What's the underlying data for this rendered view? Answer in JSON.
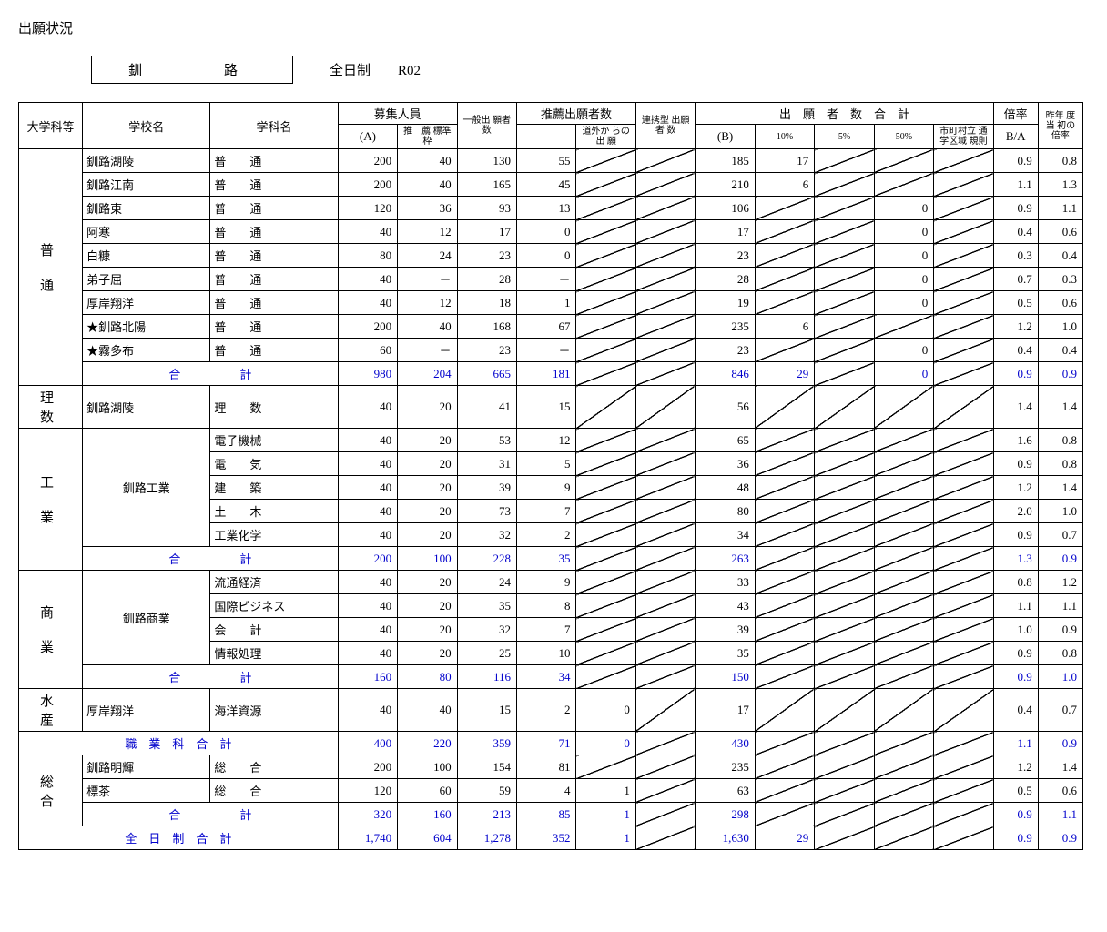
{
  "title": "出願状況",
  "region": "釧　　路",
  "system": "全日制",
  "year": "R02",
  "headers": {
    "cat": "大学科等",
    "school": "学校名",
    "dept": "学科名",
    "recruit": "募集人員",
    "recruit_a": "(A)",
    "recruit_rec": "推　薦\n標準枠",
    "general": "一般出\n願者数",
    "rec_app": "推薦出願者数",
    "rec_out": "道外か\nらの出\n願",
    "linked": "連携型\n出願者\n数",
    "total": "出　願　者　数　合　計",
    "total_b": "(B)",
    "p10": "10%",
    "p5": "5%",
    "p50": "50%",
    "muni": "市町村立\n通学区域\n規則",
    "rate": "倍率",
    "rate_ba": "B/A",
    "prev": "昨年\n度当\n初の\n倍率"
  },
  "categories": [
    {
      "name": "普\n\n通",
      "rows": [
        {
          "school": "釧路湖陵",
          "dept": "普　　通",
          "a": "200",
          "rec": "40",
          "gen": "130",
          "rapp": "55",
          "rout": "/",
          "link": "/",
          "b": "185",
          "p10": "17",
          "p5": "/",
          "p50": "/",
          "muni": "/",
          "ba": "0.9",
          "prev": "0.8"
        },
        {
          "school": "釧路江南",
          "dept": "普　　通",
          "a": "200",
          "rec": "40",
          "gen": "165",
          "rapp": "45",
          "rout": "/",
          "link": "/",
          "b": "210",
          "p10": "6",
          "p5": "/",
          "p50": "/",
          "muni": "/",
          "ba": "1.1",
          "prev": "1.3"
        },
        {
          "school": "釧路東",
          "dept": "普　　通",
          "a": "120",
          "rec": "36",
          "gen": "93",
          "rapp": "13",
          "rout": "/",
          "link": "/",
          "b": "106",
          "p10": "/",
          "p5": "/",
          "p50": "0",
          "muni": "/",
          "ba": "0.9",
          "prev": "1.1"
        },
        {
          "school": "阿寒",
          "dept": "普　　通",
          "a": "40",
          "rec": "12",
          "gen": "17",
          "rapp": "0",
          "rout": "/",
          "link": "/",
          "b": "17",
          "p10": "/",
          "p5": "/",
          "p50": "0",
          "muni": "/",
          "ba": "0.4",
          "prev": "0.6"
        },
        {
          "school": "白糠",
          "dept": "普　　通",
          "a": "80",
          "rec": "24",
          "gen": "23",
          "rapp": "0",
          "rout": "/",
          "link": "/",
          "b": "23",
          "p10": "/",
          "p5": "/",
          "p50": "0",
          "muni": "/",
          "ba": "0.3",
          "prev": "0.4"
        },
        {
          "school": "弟子屈",
          "dept": "普　　通",
          "a": "40",
          "rec": "－",
          "gen": "28",
          "rapp": "－",
          "rout": "/",
          "link": "/",
          "b": "28",
          "p10": "/",
          "p5": "/",
          "p50": "0",
          "muni": "/",
          "ba": "0.7",
          "prev": "0.3"
        },
        {
          "school": "厚岸翔洋",
          "dept": "普　　通",
          "a": "40",
          "rec": "12",
          "gen": "18",
          "rapp": "1",
          "rout": "/",
          "link": "/",
          "b": "19",
          "p10": "/",
          "p5": "/",
          "p50": "0",
          "muni": "/",
          "ba": "0.5",
          "prev": "0.6"
        },
        {
          "school": "★釧路北陽",
          "dept": "普　　通",
          "a": "200",
          "rec": "40",
          "gen": "168",
          "rapp": "67",
          "rout": "/",
          "link": "/",
          "b": "235",
          "p10": "6",
          "p5": "/",
          "p50": "/",
          "muni": "/",
          "ba": "1.2",
          "prev": "1.0"
        },
        {
          "school": "★霧多布",
          "dept": "普　　通",
          "a": "60",
          "rec": "－",
          "gen": "23",
          "rapp": "－",
          "rout": "/",
          "link": "/",
          "b": "23",
          "p10": "/",
          "p5": "/",
          "p50": "0",
          "muni": "/",
          "ba": "0.4",
          "prev": "0.4"
        }
      ],
      "total": {
        "label": "合　　　　　計",
        "a": "980",
        "rec": "204",
        "gen": "665",
        "rapp": "181",
        "rout": "/",
        "link": "/",
        "b": "846",
        "p10": "29",
        "p5": "/",
        "p50": "0",
        "muni": "/",
        "ba": "0.9",
        "prev": "0.9"
      }
    },
    {
      "name": "理　数",
      "rows": [
        {
          "school": "釧路湖陵",
          "dept": "理　　数",
          "a": "40",
          "rec": "20",
          "gen": "41",
          "rapp": "15",
          "rout": "/",
          "link": "/",
          "b": "56",
          "p10": "/",
          "p5": "/",
          "p50": "/",
          "muni": "/",
          "ba": "1.4",
          "prev": "1.4"
        }
      ]
    },
    {
      "name": "工\n\n業",
      "school": "釧路工業",
      "rows": [
        {
          "dept": "電子機械",
          "a": "40",
          "rec": "20",
          "gen": "53",
          "rapp": "12",
          "rout": "/",
          "link": "/",
          "b": "65",
          "p10": "/",
          "p5": "/",
          "p50": "/",
          "muni": "/",
          "ba": "1.6",
          "prev": "0.8"
        },
        {
          "dept": "電　　気",
          "a": "40",
          "rec": "20",
          "gen": "31",
          "rapp": "5",
          "rout": "/",
          "link": "/",
          "b": "36",
          "p10": "/",
          "p5": "/",
          "p50": "/",
          "muni": "/",
          "ba": "0.9",
          "prev": "0.8"
        },
        {
          "dept": "建　　築",
          "a": "40",
          "rec": "20",
          "gen": "39",
          "rapp": "9",
          "rout": "/",
          "link": "/",
          "b": "48",
          "p10": "/",
          "p5": "/",
          "p50": "/",
          "muni": "/",
          "ba": "1.2",
          "prev": "1.4"
        },
        {
          "dept": "土　　木",
          "a": "40",
          "rec": "20",
          "gen": "73",
          "rapp": "7",
          "rout": "/",
          "link": "/",
          "b": "80",
          "p10": "/",
          "p5": "/",
          "p50": "/",
          "muni": "/",
          "ba": "2.0",
          "prev": "1.0"
        },
        {
          "dept": "工業化学",
          "a": "40",
          "rec": "20",
          "gen": "32",
          "rapp": "2",
          "rout": "/",
          "link": "/",
          "b": "34",
          "p10": "/",
          "p5": "/",
          "p50": "/",
          "muni": "/",
          "ba": "0.9",
          "prev": "0.7"
        }
      ],
      "total": {
        "label": "合　　　　　計",
        "a": "200",
        "rec": "100",
        "gen": "228",
        "rapp": "35",
        "rout": "/",
        "link": "/",
        "b": "263",
        "p10": "/",
        "p5": "/",
        "p50": "/",
        "muni": "/",
        "ba": "1.3",
        "prev": "0.9"
      }
    },
    {
      "name": "商\n\n業",
      "school": "釧路商業",
      "rows": [
        {
          "dept": "流通経済",
          "a": "40",
          "rec": "20",
          "gen": "24",
          "rapp": "9",
          "rout": "/",
          "link": "/",
          "b": "33",
          "p10": "/",
          "p5": "/",
          "p50": "/",
          "muni": "/",
          "ba": "0.8",
          "prev": "1.2"
        },
        {
          "dept": "国際ビジネス",
          "a": "40",
          "rec": "20",
          "gen": "35",
          "rapp": "8",
          "rout": "/",
          "link": "/",
          "b": "43",
          "p10": "/",
          "p5": "/",
          "p50": "/",
          "muni": "/",
          "ba": "1.1",
          "prev": "1.1"
        },
        {
          "dept": "会　　計",
          "a": "40",
          "rec": "20",
          "gen": "32",
          "rapp": "7",
          "rout": "/",
          "link": "/",
          "b": "39",
          "p10": "/",
          "p5": "/",
          "p50": "/",
          "muni": "/",
          "ba": "1.0",
          "prev": "0.9"
        },
        {
          "dept": "情報処理",
          "a": "40",
          "rec": "20",
          "gen": "25",
          "rapp": "10",
          "rout": "/",
          "link": "/",
          "b": "35",
          "p10": "/",
          "p5": "/",
          "p50": "/",
          "muni": "/",
          "ba": "0.9",
          "prev": "0.8"
        }
      ],
      "total": {
        "label": "合　　　　　計",
        "a": "160",
        "rec": "80",
        "gen": "116",
        "rapp": "34",
        "rout": "/",
        "link": "/",
        "b": "150",
        "p10": "/",
        "p5": "/",
        "p50": "/",
        "muni": "/",
        "ba": "0.9",
        "prev": "1.0"
      }
    },
    {
      "name": "水　産",
      "rows": [
        {
          "school": "厚岸翔洋",
          "dept": "海洋資源",
          "a": "40",
          "rec": "40",
          "gen": "15",
          "rapp": "2",
          "rout": "0",
          "link": "/",
          "b": "17",
          "p10": "/",
          "p5": "/",
          "p50": "/",
          "muni": "/",
          "ba": "0.4",
          "prev": "0.7"
        }
      ]
    }
  ],
  "voc_total": {
    "label": "職　業　科　合　計",
    "a": "400",
    "rec": "220",
    "gen": "359",
    "rapp": "71",
    "rout": "0",
    "link": "/",
    "b": "430",
    "p10": "/",
    "p5": "/",
    "p50": "/",
    "muni": "/",
    "ba": "1.1",
    "prev": "0.9"
  },
  "sogo": {
    "name": "総　合",
    "rows": [
      {
        "school": "釧路明輝",
        "dept": "総　　合",
        "a": "200",
        "rec": "100",
        "gen": "154",
        "rapp": "81",
        "rout": "/",
        "link": "/",
        "b": "235",
        "p10": "/",
        "p5": "/",
        "p50": "/",
        "muni": "/",
        "ba": "1.2",
        "prev": "1.4"
      },
      {
        "school": "標茶",
        "dept": "総　　合",
        "a": "120",
        "rec": "60",
        "gen": "59",
        "rapp": "4",
        "rout": "1",
        "link": "/",
        "b": "63",
        "p10": "/",
        "p5": "/",
        "p50": "/",
        "muni": "/",
        "ba": "0.5",
        "prev": "0.6"
      }
    ],
    "total": {
      "label": "合　　　　　計",
      "a": "320",
      "rec": "160",
      "gen": "213",
      "rapp": "85",
      "rout": "1",
      "link": "/",
      "b": "298",
      "p10": "/",
      "p5": "/",
      "p50": "/",
      "muni": "/",
      "ba": "0.9",
      "prev": "1.1"
    }
  },
  "grand_total": {
    "label": "全　日　制　合　計",
    "a": "1,740",
    "rec": "604",
    "gen": "1,278",
    "rapp": "352",
    "rout": "1",
    "link": "/",
    "b": "1,630",
    "p10": "29",
    "p5": "/",
    "p50": "/",
    "muni": "/",
    "ba": "0.9",
    "prev": "0.9"
  }
}
